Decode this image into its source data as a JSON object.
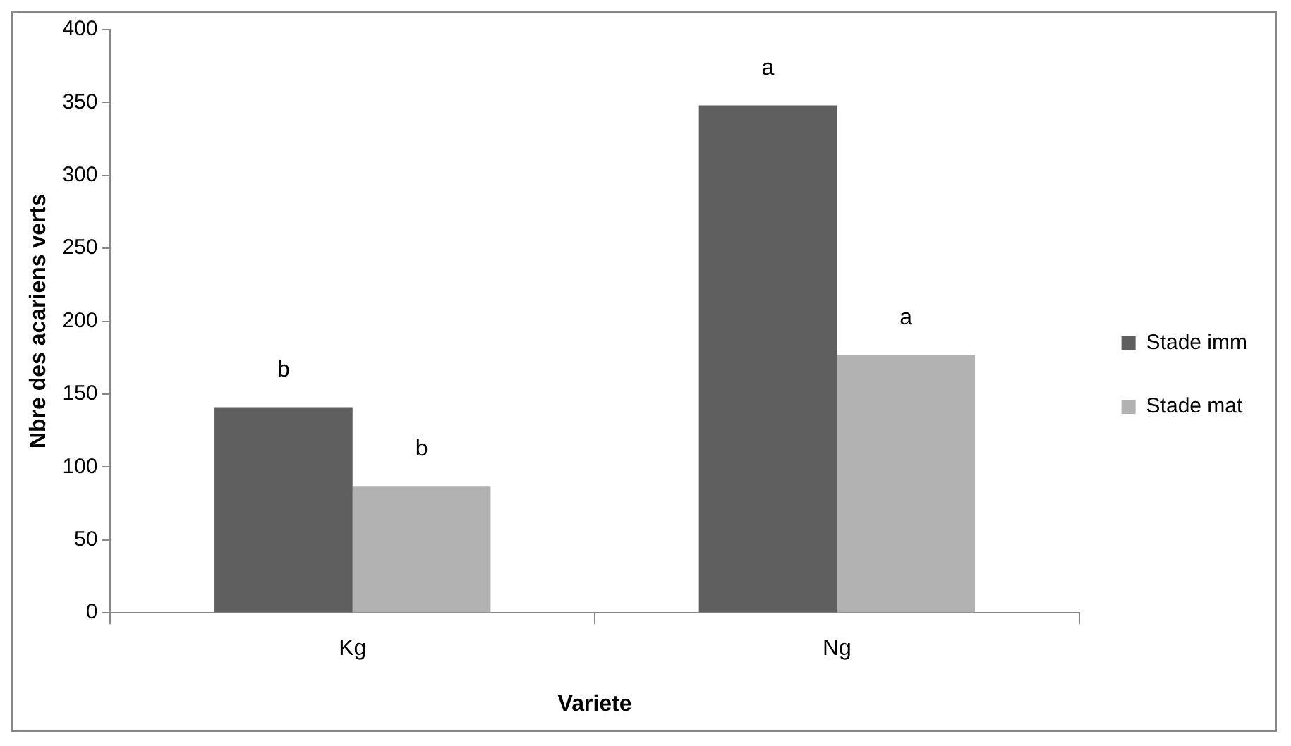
{
  "chart_data": {
    "type": "bar",
    "xlabel": "Variete",
    "ylabel": "Nbre des acariens verts",
    "categories": [
      "Kg",
      "Ng"
    ],
    "series": [
      {
        "name": "Stade imm",
        "color": "#5f5f5f",
        "values": [
          141,
          348
        ],
        "value_labels": [
          "b",
          "a"
        ]
      },
      {
        "name": "Stade mat",
        "color": "#b2b2b2",
        "values": [
          87,
          177
        ],
        "value_labels": [
          "b",
          "a"
        ]
      }
    ],
    "ylim": [
      0,
      400
    ],
    "yticks": [
      0,
      50,
      100,
      150,
      200,
      250,
      300,
      350,
      400
    ],
    "grid": false,
    "legend": "right"
  }
}
